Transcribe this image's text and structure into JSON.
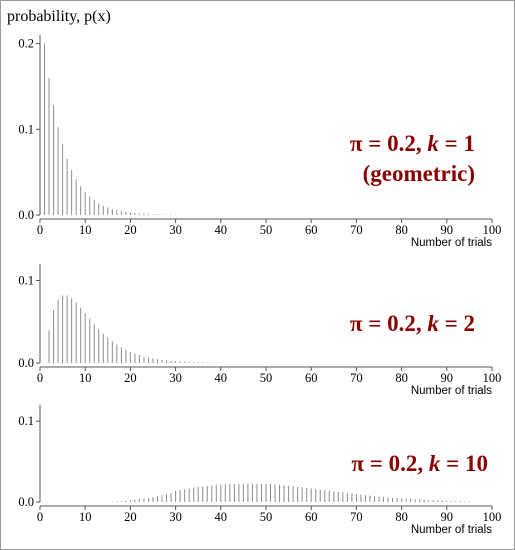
{
  "colors": {
    "bar": "#8c8c8c",
    "axis": "#555555",
    "annotation": "#8b0000",
    "text": "#000000"
  },
  "y_axis_title": "probability, p(x)",
  "chart_data": [
    {
      "type": "bar",
      "distribution": "negative binomial",
      "pi": 0.2,
      "k": 1,
      "annotation_lines": [
        "π = 0.2, k = 1",
        "(geometric)"
      ],
      "annotation_parts": [
        [
          "π = 0.2, ",
          "k",
          " = 1"
        ],
        [
          "(geometric)"
        ]
      ],
      "xlabel": "Number of trials",
      "xlim": [
        0,
        100
      ],
      "ylim": [
        0,
        0.21
      ],
      "xticks": [
        0,
        10,
        20,
        30,
        40,
        50,
        60,
        70,
        80,
        90,
        100
      ],
      "yticks": [
        0.0,
        0.1,
        0.2
      ],
      "ytick_labels": [
        "0.0",
        "0.1",
        "0.2"
      ],
      "x": [
        1,
        2,
        3,
        4,
        5,
        6,
        7,
        8,
        9,
        10,
        11,
        12,
        13,
        14,
        15,
        16,
        17,
        18,
        19,
        20,
        21,
        22,
        23,
        24,
        25,
        26,
        27,
        28,
        29,
        30
      ],
      "values": [
        0.2,
        0.16,
        0.128,
        0.1024,
        0.0819,
        0.0655,
        0.0524,
        0.0419,
        0.0336,
        0.0268,
        0.0215,
        0.0172,
        0.0137,
        0.011,
        0.0088,
        0.007,
        0.0056,
        0.0045,
        0.0036,
        0.0029,
        0.0023,
        0.0018,
        0.0015,
        0.0012,
        0.0009,
        0.0008,
        0.0006,
        0.0005,
        0.0004,
        0.0003
      ]
    },
    {
      "type": "bar",
      "distribution": "negative binomial",
      "pi": 0.2,
      "k": 2,
      "annotation_lines": [
        "π = 0.2, k = 2"
      ],
      "annotation_parts": [
        [
          "π = 0.2, ",
          "k",
          " = 2"
        ]
      ],
      "xlabel": "Number of trials",
      "xlim": [
        0,
        100
      ],
      "ylim": [
        0,
        0.12
      ],
      "xticks": [
        0,
        10,
        20,
        30,
        40,
        50,
        60,
        70,
        80,
        90,
        100
      ],
      "yticks": [
        0.0,
        0.1
      ],
      "ytick_labels": [
        "0.0",
        "0.1"
      ],
      "x": [
        2,
        3,
        4,
        5,
        6,
        7,
        8,
        9,
        10,
        11,
        12,
        13,
        14,
        15,
        16,
        17,
        18,
        19,
        20,
        21,
        22,
        23,
        24,
        25,
        26,
        27,
        28,
        29,
        30,
        31,
        32,
        33,
        34,
        35,
        36,
        37,
        38,
        39,
        40
      ],
      "values": [
        0.04,
        0.064,
        0.0768,
        0.0819,
        0.0819,
        0.0786,
        0.0734,
        0.0671,
        0.0604,
        0.0537,
        0.0472,
        0.0412,
        0.0357,
        0.0308,
        0.0264,
        0.0225,
        0.0191,
        0.0162,
        0.0137,
        0.0115,
        0.0097,
        0.0081,
        0.0068,
        0.0057,
        0.0047,
        0.0039,
        0.0033,
        0.0027,
        0.0022,
        0.0019,
        0.0015,
        0.0013,
        0.001,
        0.0009,
        0.0007,
        0.0006,
        0.0005,
        0.0004,
        0.0003
      ]
    },
    {
      "type": "bar",
      "distribution": "negative binomial",
      "pi": 0.2,
      "k": 10,
      "annotation_lines": [
        "π = 0.2, k = 10"
      ],
      "annotation_parts": [
        [
          "π = 0.2, ",
          "k",
          " = 10"
        ]
      ],
      "xlabel": "Number of trials",
      "xlim": [
        0,
        100
      ],
      "ylim": [
        0,
        0.12
      ],
      "xticks": [
        0,
        10,
        20,
        30,
        40,
        50,
        60,
        70,
        80,
        90,
        100
      ],
      "yticks": [
        0.0,
        0.1
      ],
      "ytick_labels": [
        "0.0",
        "0.1"
      ],
      "x": [
        15,
        16,
        17,
        18,
        19,
        20,
        21,
        22,
        23,
        24,
        25,
        26,
        27,
        28,
        29,
        30,
        31,
        32,
        33,
        34,
        35,
        36,
        37,
        38,
        39,
        40,
        41,
        42,
        43,
        44,
        45,
        46,
        47,
        48,
        49,
        50,
        51,
        52,
        53,
        54,
        55,
        56,
        57,
        58,
        59,
        60,
        61,
        62,
        63,
        64,
        65,
        66,
        67,
        68,
        69,
        70,
        71,
        72,
        73,
        74,
        75,
        76,
        77,
        78,
        79,
        80,
        81,
        82,
        83,
        84,
        85,
        86,
        87,
        88,
        89,
        90,
        91,
        92,
        93,
        94,
        95
      ],
      "values": [
        0.0003,
        0.0005,
        0.0008,
        0.0011,
        0.0016,
        0.0021,
        0.0027,
        0.0035,
        0.0043,
        0.0052,
        0.0062,
        0.0073,
        0.0084,
        0.0095,
        0.0107,
        0.0138,
        0.0148,
        0.0158,
        0.0168,
        0.0177,
        0.0185,
        0.0192,
        0.0199,
        0.0205,
        0.021,
        0.0215,
        0.0219,
        0.0222,
        0.0225,
        0.0227,
        0.0228,
        0.0228,
        0.0228,
        0.0227,
        0.0225,
        0.0222,
        0.0219,
        0.0215,
        0.0211,
        0.0206,
        0.02,
        0.0194,
        0.0188,
        0.0182,
        0.0175,
        0.0168,
        0.0161,
        0.0154,
        0.0147,
        0.014,
        0.0132,
        0.0125,
        0.0118,
        0.0111,
        0.0104,
        0.0098,
        0.0091,
        0.0085,
        0.0079,
        0.0073,
        0.0068,
        0.0063,
        0.0058,
        0.0053,
        0.0049,
        0.0045,
        0.0041,
        0.0037,
        0.0034,
        0.0031,
        0.0028,
        0.0025,
        0.0022,
        0.002,
        0.0018,
        0.0016,
        0.0014,
        0.0012,
        0.0011,
        0.0009,
        0.0008
      ]
    }
  ]
}
